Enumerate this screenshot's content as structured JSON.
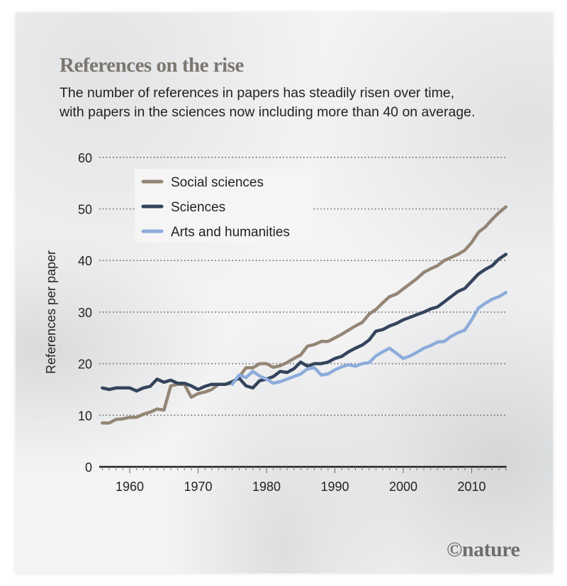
{
  "header": {
    "title": "References on the rise",
    "subtitle_lines": [
      "The number of references in papers has steadily risen over time,",
      "with papers in the sciences now including more than 40 on average."
    ]
  },
  "credit": "©nature",
  "colors": {
    "social_sciences": "#948676",
    "sciences": "#34445c",
    "arts_and_humanities": "#8cacdb",
    "grid": "#666666",
    "axis": "#222222"
  },
  "chart_data": {
    "type": "line",
    "title": "References on the rise",
    "xlabel": "",
    "ylabel": "References per paper",
    "xlim": [
      1956,
      2015
    ],
    "ylim": [
      0,
      60
    ],
    "yticks": [
      0,
      10,
      20,
      30,
      40,
      50,
      60
    ],
    "xticks": [
      1960,
      1970,
      1980,
      1990,
      2000,
      2010
    ],
    "grid": "horizontal dotted",
    "legend_position": "top-left",
    "series": [
      {
        "name": "Social sciences",
        "color_key": "social_sciences",
        "x": [
          1956,
          1957,
          1958,
          1959,
          1960,
          1961,
          1962,
          1963,
          1964,
          1965,
          1966,
          1967,
          1968,
          1969,
          1970,
          1971,
          1972,
          1973,
          1974,
          1975,
          1976,
          1977,
          1978,
          1979,
          1980,
          1981,
          1982,
          1983,
          1984,
          1985,
          1986,
          1987,
          1988,
          1989,
          1990,
          1991,
          1992,
          1993,
          1994,
          1995,
          1996,
          1997,
          1998,
          1999,
          2000,
          2001,
          2002,
          2003,
          2004,
          2005,
          2006,
          2007,
          2008,
          2009,
          2010,
          2011,
          2012,
          2013,
          2014,
          2015
        ],
        "values": [
          8.5,
          8.5,
          9.2,
          9.3,
          9.6,
          9.6,
          10.2,
          10.6,
          11.2,
          11.0,
          15.7,
          16.0,
          16.0,
          13.5,
          14.2,
          14.5,
          15.0,
          16.0,
          16.0,
          16.3,
          17.4,
          19.2,
          19.2,
          20.0,
          20.0,
          19.3,
          19.6,
          20.2,
          21.0,
          21.7,
          23.4,
          23.7,
          24.3,
          24.3,
          25.0,
          25.7,
          26.5,
          27.3,
          28.0,
          29.6,
          30.5,
          31.8,
          33.0,
          33.5,
          34.5,
          35.5,
          36.5,
          37.7,
          38.4,
          39.0,
          40.0,
          40.6,
          41.2,
          42.0,
          43.5,
          45.5,
          46.5,
          48.0,
          49.3,
          50.4
        ]
      },
      {
        "name": "Sciences",
        "color_key": "sciences",
        "x": [
          1956,
          1957,
          1958,
          1959,
          1960,
          1961,
          1962,
          1963,
          1964,
          1965,
          1966,
          1967,
          1968,
          1969,
          1970,
          1971,
          1972,
          1973,
          1974,
          1975,
          1976,
          1977,
          1978,
          1979,
          1980,
          1981,
          1982,
          1983,
          1984,
          1985,
          1986,
          1987,
          1988,
          1989,
          1990,
          1991,
          1992,
          1993,
          1994,
          1995,
          1996,
          1997,
          1998,
          1999,
          2000,
          2001,
          2002,
          2003,
          2004,
          2005,
          2006,
          2007,
          2008,
          2009,
          2010,
          2011,
          2012,
          2013,
          2014,
          2015
        ],
        "values": [
          15.3,
          15.0,
          15.3,
          15.3,
          15.3,
          14.7,
          15.3,
          15.6,
          17.0,
          16.4,
          16.8,
          16.2,
          16.2,
          15.7,
          15.0,
          15.6,
          16.0,
          16.0,
          16.0,
          16.5,
          17.2,
          15.7,
          15.3,
          16.7,
          17.0,
          17.5,
          18.5,
          18.3,
          19.0,
          20.3,
          19.5,
          20.0,
          20.0,
          20.3,
          21.0,
          21.4,
          22.3,
          23.0,
          23.6,
          24.6,
          26.3,
          26.6,
          27.3,
          27.8,
          28.5,
          29.0,
          29.5,
          30.0,
          30.6,
          31.0,
          32.0,
          33.0,
          34.0,
          34.6,
          36.0,
          37.4,
          38.3,
          39.0,
          40.3,
          41.2
        ]
      },
      {
        "name": "Arts and humanities",
        "color_key": "arts_and_humanities",
        "x": [
          1975,
          1976,
          1977,
          1978,
          1979,
          1980,
          1981,
          1982,
          1983,
          1984,
          1985,
          1986,
          1987,
          1988,
          1989,
          1990,
          1991,
          1992,
          1993,
          1994,
          1995,
          1996,
          1997,
          1998,
          1999,
          2000,
          2001,
          2002,
          2003,
          2004,
          2005,
          2006,
          2007,
          2008,
          2009,
          2010,
          2011,
          2012,
          2013,
          2014,
          2015
        ],
        "values": [
          16.0,
          17.8,
          17.3,
          18.5,
          17.6,
          17.0,
          16.2,
          16.5,
          17.0,
          17.5,
          18.0,
          19.0,
          19.2,
          17.8,
          18.0,
          18.8,
          19.4,
          19.8,
          19.5,
          20.0,
          20.2,
          21.5,
          22.3,
          23.0,
          22.0,
          21.0,
          21.5,
          22.2,
          23.0,
          23.5,
          24.2,
          24.3,
          25.3,
          26.0,
          26.5,
          28.5,
          30.8,
          31.7,
          32.5,
          33.0,
          33.8
        ]
      }
    ]
  }
}
